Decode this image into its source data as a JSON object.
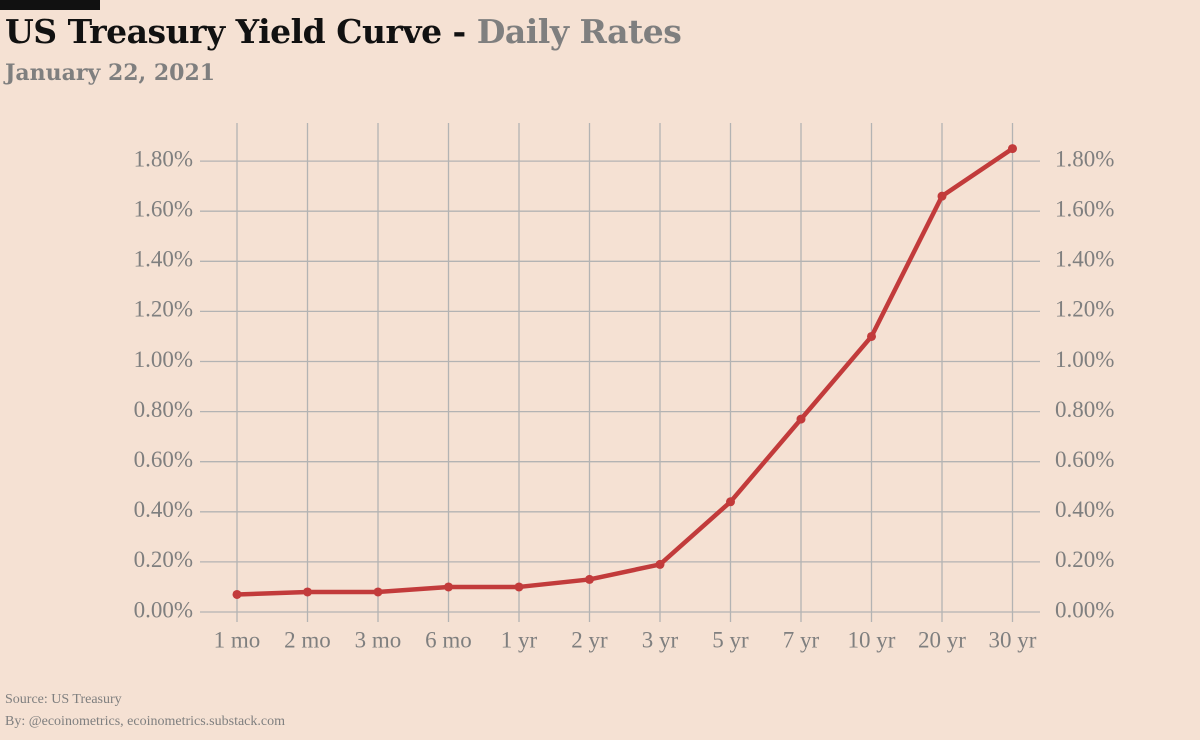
{
  "header": {
    "title_main": "US Treasury Yield Curve - ",
    "title_highlight": "Daily Rates",
    "subtitle": "January 22, 2021"
  },
  "footer": {
    "source": "Source: US Treasury",
    "by": "By: @ecoinometrics, ecoinometrics.substack.com"
  },
  "colors": {
    "background": "#f5e1d3",
    "line": "#c23b3b",
    "grid": "#b3b3b3",
    "axis_text": "#7f7f7f"
  },
  "chart_data": {
    "type": "line",
    "categories": [
      "1 mo",
      "2 mo",
      "3 mo",
      "6 mo",
      "1 yr",
      "2 yr",
      "3 yr",
      "5 yr",
      "7 yr",
      "10 yr",
      "20 yr",
      "30 yr"
    ],
    "series": [
      {
        "values": [
          0.07,
          0.08,
          0.08,
          0.1,
          0.1,
          0.13,
          0.19,
          0.44,
          0.77,
          1.1,
          1.66,
          1.85
        ]
      }
    ],
    "title": "US Treasury Yield Curve - Daily Rates",
    "subtitle": "January 22, 2021",
    "xlabel": "",
    "ylabel": "",
    "ylim": [
      0,
      1.8
    ],
    "yticks": [
      "0.00%",
      "0.20%",
      "0.40%",
      "0.60%",
      "0.80%",
      "1.00%",
      "1.20%",
      "1.40%",
      "1.60%",
      "1.80%"
    ],
    "y_axis_sides": "left and right",
    "grid": true,
    "legend": "none"
  }
}
